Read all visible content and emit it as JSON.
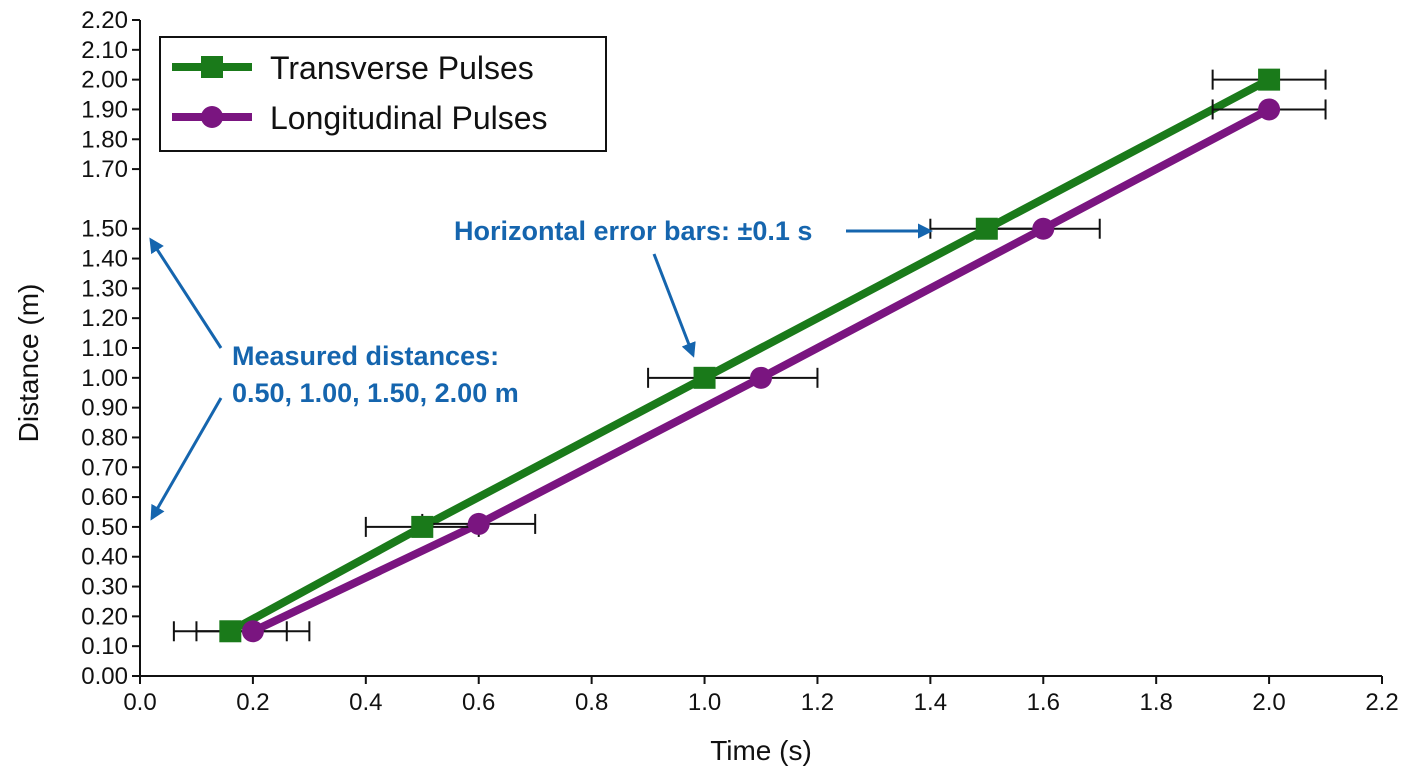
{
  "chart_data": {
    "type": "line",
    "title": "",
    "xlabel": "Time (s)",
    "ylabel": "Distance (m)",
    "xlim": [
      0.0,
      2.2
    ],
    "ylim": [
      0.0,
      2.2
    ],
    "x_ticks": [
      "0.0",
      "0.2",
      "0.4",
      "0.6",
      "0.8",
      "1.0",
      "1.2",
      "1.4",
      "1.6",
      "1.8",
      "2.0",
      "2.2"
    ],
    "y_ticks": [
      "0.00",
      "0.10",
      "0.20",
      "0.30",
      "0.40",
      "0.50",
      "0.60",
      "0.70",
      "0.80",
      "0.90",
      "1.00",
      "1.10",
      "1.20",
      "1.30",
      "1.40",
      "1.50",
      "1.70",
      "1.80",
      "1.90",
      "2.00",
      "2.10",
      "2.20"
    ],
    "grid": false,
    "legend_position": "top-left",
    "x_error": 0.1,
    "series": [
      {
        "name": "Transverse Pulses",
        "color": "#1a7a1a",
        "marker": "square",
        "points": [
          {
            "x": 0.16,
            "y": 0.15
          },
          {
            "x": 0.5,
            "y": 0.5
          },
          {
            "x": 1.0,
            "y": 1.0
          },
          {
            "x": 1.5,
            "y": 1.5
          },
          {
            "x": 2.0,
            "y": 2.0
          }
        ]
      },
      {
        "name": "Longitudinal Pulses",
        "color": "#7a1580",
        "marker": "circle",
        "points": [
          {
            "x": 0.2,
            "y": 0.15
          },
          {
            "x": 0.6,
            "y": 0.51
          },
          {
            "x": 1.1,
            "y": 1.0
          },
          {
            "x": 1.6,
            "y": 1.5
          },
          {
            "x": 2.0,
            "y": 1.9
          }
        ]
      }
    ],
    "annotations": [
      {
        "id": "measured",
        "lines": [
          "Measured distances:",
          "0.50, 1.00, 1.50, 2.00 m"
        ]
      },
      {
        "id": "errorbars",
        "lines": [
          "Horizontal error bars: ±0.1 s"
        ]
      }
    ],
    "annotation_color": "#1565ae"
  }
}
